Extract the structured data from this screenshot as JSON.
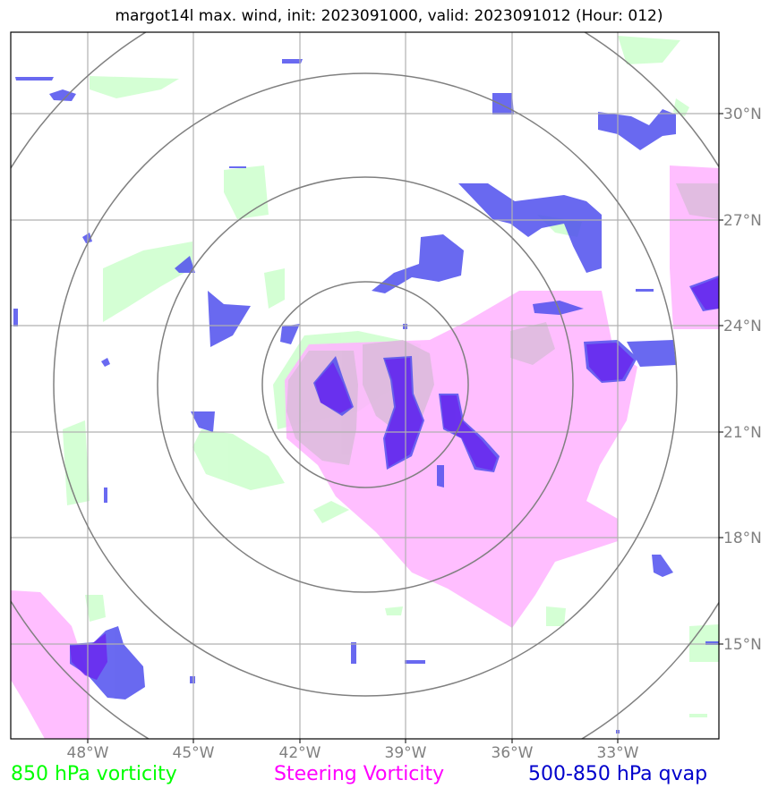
{
  "title": "margot14l max. wind, init: 2023091000, valid: 2023091012 (Hour: 012)",
  "lon_labels": [
    "48°W",
    "45°W",
    "42°W",
    "39°W",
    "36°W",
    "33°W"
  ],
  "lat_labels": [
    "30°N",
    "27°N",
    "24°N",
    "21°N",
    "18°N",
    "15°N"
  ],
  "legend": {
    "green": {
      "label": "850 hPa vorticity",
      "color": "#00ff00"
    },
    "magenta": {
      "label": "Steering Vorticity",
      "color": "#ff00ff"
    },
    "blue": {
      "label": "500-850 hPa qvap",
      "color": "#0000cc"
    }
  },
  "fill_colors": {
    "green": "#ccffcc",
    "magenta": "#ffb3ff",
    "blue": "#5555ee"
  },
  "ring_color": "#808080",
  "grid_color": "#b0b0b0"
}
